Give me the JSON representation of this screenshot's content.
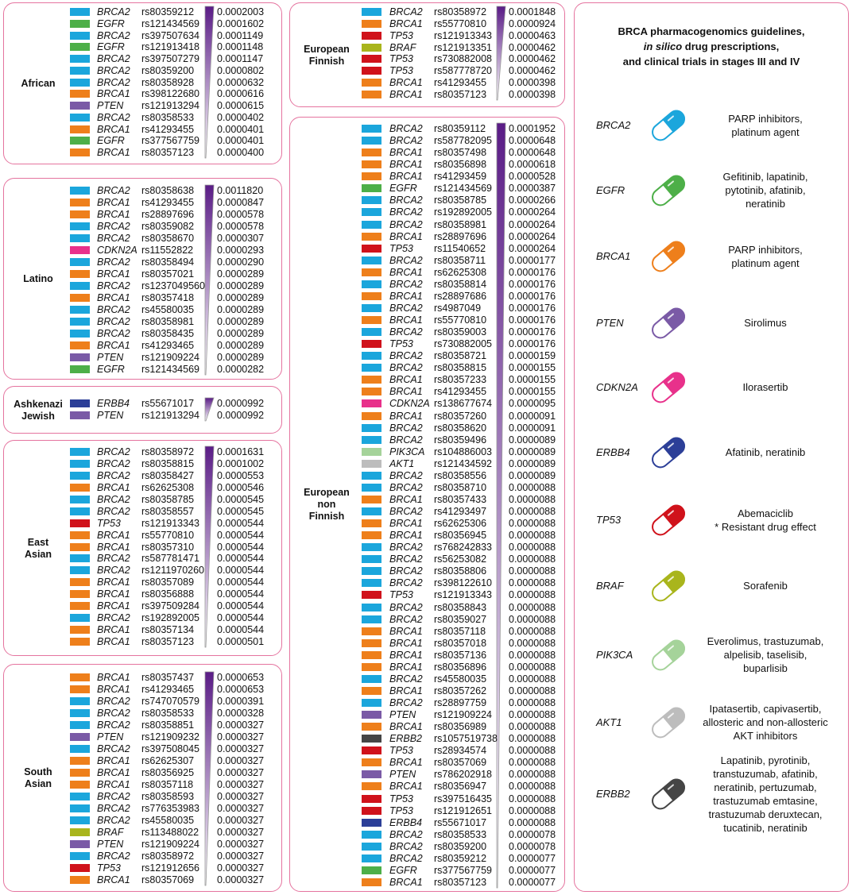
{
  "gene_colors": {
    "BRCA2": "#1ba6dc",
    "BRCA1": "#ee7f1b",
    "EGFR": "#4daf48",
    "PTEN": "#7a5aa6",
    "TP53": "#d0121b",
    "CDKN2A": "#e8318b",
    "ERBB4": "#2c3f98",
    "BRAF": "#a9b51c",
    "PIK3CA": "#a5d39a",
    "AKT1": "#bdbdbd",
    "ERBB2": "#454545"
  },
  "panels": [
    {
      "name": [
        "African"
      ],
      "rows": [
        [
          "BRCA2",
          "rs80359212",
          "0.0002003"
        ],
        [
          "EGFR",
          "rs121434569",
          "0.0001602"
        ],
        [
          "BRCA2",
          "rs397507634",
          "0.0001149"
        ],
        [
          "EGFR",
          "rs121913418",
          "0.0001148"
        ],
        [
          "BRCA2",
          "rs397507279",
          "0.0001147"
        ],
        [
          "BRCA2",
          "rs80359200",
          "0.0000802"
        ],
        [
          "BRCA2",
          "rs80358928",
          "0.0000632"
        ],
        [
          "BRCA1",
          "rs398122680",
          "0.0000616"
        ],
        [
          "PTEN",
          "rs121913294",
          "0.0000615"
        ],
        [
          "BRCA2",
          "rs80358533",
          "0.0000402"
        ],
        [
          "BRCA1",
          "rs41293455",
          "0.0000401"
        ],
        [
          "EGFR",
          "rs377567759",
          "0.0000401"
        ],
        [
          "BRCA1",
          "rs80357123",
          "0.0000400"
        ]
      ]
    },
    {
      "name": [
        "Latino"
      ],
      "rows": [
        [
          "BRCA2",
          "rs80358638",
          "0.0011820"
        ],
        [
          "BRCA1",
          "rs41293455",
          "0.0000847"
        ],
        [
          "BRCA1",
          "rs28897696",
          "0.0000578"
        ],
        [
          "BRCA2",
          "rs80359082",
          "0.0000578"
        ],
        [
          "BRCA2",
          "rs80358670",
          "0.0000307"
        ],
        [
          "CDKN2A",
          "rs11552822",
          "0.0000293"
        ],
        [
          "BRCA2",
          "rs80358494",
          "0.0000290"
        ],
        [
          "BRCA1",
          "rs80357021",
          "0.0000289"
        ],
        [
          "BRCA2",
          "rs1237049560",
          "0.0000289"
        ],
        [
          "BRCA1",
          "rs80357418",
          "0.0000289"
        ],
        [
          "BRCA2",
          "rs45580035",
          "0.0000289"
        ],
        [
          "BRCA2",
          "rs80358981",
          "0.0000289"
        ],
        [
          "BRCA2",
          "rs80358435",
          "0.0000289"
        ],
        [
          "BRCA1",
          "rs41293465",
          "0.0000289"
        ],
        [
          "PTEN",
          "rs121909224",
          "0.0000289"
        ],
        [
          "EGFR",
          "rs121434569",
          "0.0000282"
        ]
      ]
    },
    {
      "name": [
        "Ashkenazi",
        "Jewish"
      ],
      "rows": [
        [
          "ERBB4",
          "rs55671017",
          "0.0000992"
        ],
        [
          "PTEN",
          "rs121913294",
          "0.0000992"
        ]
      ]
    },
    {
      "name": [
        "East",
        "Asian"
      ],
      "rows": [
        [
          "BRCA2",
          "rs80358972",
          "0.0001631"
        ],
        [
          "BRCA2",
          "rs80358815",
          "0.0001002"
        ],
        [
          "BRCA2",
          "rs80358427",
          "0.0000553"
        ],
        [
          "BRCA1",
          "rs62625308",
          "0.0000546"
        ],
        [
          "BRCA2",
          "rs80358785",
          "0.0000545"
        ],
        [
          "BRCA2",
          "rs80358557",
          "0.0000545"
        ],
        [
          "TP53",
          "rs121913343",
          "0.0000544"
        ],
        [
          "BRCA1",
          "rs55770810",
          "0.0000544"
        ],
        [
          "BRCA1",
          "rs80357310",
          "0.0000544"
        ],
        [
          "BRCA2",
          "rs587781471",
          "0.0000544"
        ],
        [
          "BRCA2",
          "rs1211970260",
          "0.0000544"
        ],
        [
          "BRCA1",
          "rs80357089",
          "0.0000544"
        ],
        [
          "BRCA1",
          "rs80356888",
          "0.0000544"
        ],
        [
          "BRCA1",
          "rs397509284",
          "0.0000544"
        ],
        [
          "BRCA2",
          "rs192892005",
          "0.0000544"
        ],
        [
          "BRCA1",
          "rs80357134",
          "0.0000544"
        ],
        [
          "BRCA1",
          "rs80357123",
          "0.0000501"
        ]
      ]
    },
    {
      "name": [
        "South",
        "Asian"
      ],
      "rows": [
        [
          "BRCA1",
          "rs80357437",
          "0.0000653"
        ],
        [
          "BRCA1",
          "rs41293465",
          "0.0000653"
        ],
        [
          "BRCA2",
          "rs747070579",
          "0.0000391"
        ],
        [
          "BRCA2",
          "rs80358533",
          "0.0000328"
        ],
        [
          "BRCA2",
          "rs80358851",
          "0.0000327"
        ],
        [
          "PTEN",
          "rs121909232",
          "0.0000327"
        ],
        [
          "BRCA2",
          "rs397508045",
          "0.0000327"
        ],
        [
          "BRCA1",
          "rs62625307",
          "0.0000327"
        ],
        [
          "BRCA1",
          "rs80356925",
          "0.0000327"
        ],
        [
          "BRCA1",
          "rs80357118",
          "0.0000327"
        ],
        [
          "BRCA2",
          "rs80358593",
          "0.0000327"
        ],
        [
          "BRCA2",
          "rs776353983",
          "0.0000327"
        ],
        [
          "BRCA2",
          "rs45580035",
          "0.0000327"
        ],
        [
          "BRAF",
          "rs113488022",
          "0.0000327"
        ],
        [
          "PTEN",
          "rs121909224",
          "0.0000327"
        ],
        [
          "BRCA2",
          "rs80358972",
          "0.0000327"
        ],
        [
          "TP53",
          "rs121912656",
          "0.0000327"
        ],
        [
          "BRCA1",
          "rs80357069",
          "0.0000327"
        ]
      ]
    },
    {
      "name": [
        "European",
        "Finnish"
      ],
      "rows": [
        [
          "BRCA2",
          "rs80358972",
          "0.0001848"
        ],
        [
          "BRCA1",
          "rs55770810",
          "0.0000924"
        ],
        [
          "TP53",
          "rs121913343",
          "0.0000463"
        ],
        [
          "BRAF",
          "rs121913351",
          "0.0000462"
        ],
        [
          "TP53",
          "rs730882008",
          "0.0000462"
        ],
        [
          "TP53",
          "rs587778720",
          "0.0000462"
        ],
        [
          "BRCA1",
          "rs41293455",
          "0.0000398"
        ],
        [
          "BRCA1",
          "rs80357123",
          "0.0000398"
        ]
      ]
    },
    {
      "name": [
        "European",
        "non",
        "Finnish"
      ],
      "rows": [
        [
          "BRCA2",
          "rs80359112",
          "0.0001952"
        ],
        [
          "BRCA2",
          "rs587782095",
          "0.0000648"
        ],
        [
          "BRCA1",
          "rs80357498",
          "0.0000648"
        ],
        [
          "BRCA1",
          "rs80356898",
          "0.0000618"
        ],
        [
          "BRCA1",
          "rs41293459",
          "0.0000528"
        ],
        [
          "EGFR",
          "rs121434569",
          "0.0000387"
        ],
        [
          "BRCA2",
          "rs80358785",
          "0.0000266"
        ],
        [
          "BRCA2",
          "rs192892005",
          "0.0000264"
        ],
        [
          "BRCA2",
          "rs80358981",
          "0.0000264"
        ],
        [
          "BRCA1",
          "rs28897696",
          "0.0000264"
        ],
        [
          "TP53",
          "rs11540652",
          "0.0000264"
        ],
        [
          "BRCA2",
          "rs80358711",
          "0.0000177"
        ],
        [
          "BRCA1",
          "rs62625308",
          "0.0000176"
        ],
        [
          "BRCA2",
          "rs80358814",
          "0.0000176"
        ],
        [
          "BRCA1",
          "rs28897686",
          "0.0000176"
        ],
        [
          "BRCA2",
          "rs4987049",
          "0.0000176"
        ],
        [
          "BRCA1",
          "rs55770810",
          "0.0000176"
        ],
        [
          "BRCA2",
          "rs80359003",
          "0.0000176"
        ],
        [
          "TP53",
          "rs730882005",
          "0.0000176"
        ],
        [
          "BRCA2",
          "rs80358721",
          "0.0000159"
        ],
        [
          "BRCA2",
          "rs80358815",
          "0.0000155"
        ],
        [
          "BRCA1",
          "rs80357233",
          "0.0000155"
        ],
        [
          "BRCA1",
          "rs41293455",
          "0.0000155"
        ],
        [
          "CDKN2A",
          "rs138677674",
          "0.0000095"
        ],
        [
          "BRCA1",
          "rs80357260",
          "0.0000091"
        ],
        [
          "BRCA2",
          "rs80358620",
          "0.0000091"
        ],
        [
          "BRCA2",
          "rs80359496",
          "0.0000089"
        ],
        [
          "PIK3CA",
          "rs104886003",
          "0.0000089"
        ],
        [
          "AKT1",
          "rs121434592",
          "0.0000089"
        ],
        [
          "BRCA2",
          "rs80358556",
          "0.0000089"
        ],
        [
          "BRCA2",
          "rs80358710",
          "0.0000088"
        ],
        [
          "BRCA1",
          "rs80357433",
          "0.0000088"
        ],
        [
          "BRCA2",
          "rs41293497",
          "0.0000088"
        ],
        [
          "BRCA1",
          "rs62625306",
          "0.0000088"
        ],
        [
          "BRCA1",
          "rs80356945",
          "0.0000088"
        ],
        [
          "BRCA2",
          "rs768242833",
          "0.0000088"
        ],
        [
          "BRCA2",
          "rs56253082",
          "0.0000088"
        ],
        [
          "BRCA2",
          "rs80358806",
          "0.0000088"
        ],
        [
          "BRCA2",
          "rs398122610",
          "0.0000088"
        ],
        [
          "TP53",
          "rs121913343",
          "0.0000088"
        ],
        [
          "BRCA2",
          "rs80358843",
          "0.0000088"
        ],
        [
          "BRCA2",
          "rs80359027",
          "0.0000088"
        ],
        [
          "BRCA1",
          "rs80357118",
          "0.0000088"
        ],
        [
          "BRCA1",
          "rs80357018",
          "0.0000088"
        ],
        [
          "BRCA1",
          "rs80357136",
          "0.0000088"
        ],
        [
          "BRCA1",
          "rs80356896",
          "0.0000088"
        ],
        [
          "BRCA2",
          "rs45580035",
          "0.0000088"
        ],
        [
          "BRCA1",
          "rs80357262",
          "0.0000088"
        ],
        [
          "BRCA2",
          "rs28897759",
          "0.0000088"
        ],
        [
          "PTEN",
          "rs121909224",
          "0.0000088"
        ],
        [
          "BRCA1",
          "rs80356989",
          "0.0000088"
        ],
        [
          "ERBB2",
          "rs1057519738",
          "0.0000088"
        ],
        [
          "TP53",
          "rs28934574",
          "0.0000088"
        ],
        [
          "BRCA1",
          "rs80357069",
          "0.0000088"
        ],
        [
          "PTEN",
          "rs786202918",
          "0.0000088"
        ],
        [
          "BRCA1",
          "rs80356947",
          "0.0000088"
        ],
        [
          "TP53",
          "rs397516435",
          "0.0000088"
        ],
        [
          "TP53",
          "rs121912651",
          "0.0000088"
        ],
        [
          "ERBB4",
          "rs55671017",
          "0.0000088"
        ],
        [
          "BRCA2",
          "rs80358533",
          "0.0000078"
        ],
        [
          "BRCA2",
          "rs80359200",
          "0.0000078"
        ],
        [
          "BRCA2",
          "rs80359212",
          "0.0000077"
        ],
        [
          "EGFR",
          "rs377567759",
          "0.0000077"
        ],
        [
          "BRCA1",
          "rs80357123",
          "0.0000077"
        ]
      ]
    }
  ],
  "guidelines": {
    "title": [
      [
        "BRCA pharmacogenomics guidelines,"
      ],
      [
        "in silico",
        "drug prescriptions,"
      ],
      [
        "and clinical trials in stages III and IV"
      ]
    ],
    "items": [
      {
        "gene": "BRCA2",
        "drugs": [
          "PARP inhibitors,",
          "platinum agent"
        ]
      },
      {
        "gene": "EGFR",
        "drugs": [
          "Gefitinib, lapatinib,",
          "pytotinib, afatinib,",
          "neratinib"
        ]
      },
      {
        "gene": "BRCA1",
        "drugs": [
          "PARP inhibitors,",
          "platinum agent"
        ]
      },
      {
        "gene": "PTEN",
        "drugs": [
          "Sirolimus"
        ]
      },
      {
        "gene": "CDKN2A",
        "drugs": [
          "Ilorasertib"
        ]
      },
      {
        "gene": "ERBB4",
        "drugs": [
          "Afatinib, neratinib"
        ]
      },
      {
        "gene": "TP53",
        "drugs": [
          "Abemaciclib",
          "* Resistant drug effect"
        ]
      },
      {
        "gene": "BRAF",
        "drugs": [
          "Sorafenib"
        ]
      },
      {
        "gene": "PIK3CA",
        "drugs": [
          "Everolimus, trastuzumab,",
          "alpelisib, taselisib,",
          "buparlisib"
        ]
      },
      {
        "gene": "AKT1",
        "drugs": [
          "Ipatasertib, capivasertib,",
          "allosteric and non-allosteric",
          "AKT inhibitors"
        ]
      },
      {
        "gene": "ERBB2",
        "drugs": [
          "Lapatinib, pyrotinib,",
          "transtuzumab, afatinib,",
          "neratinib, pertuzumab,",
          "trastuzumab emtasine,",
          "trastuzumab deruxtecan,",
          "tucatinib, neratinib"
        ]
      }
    ]
  }
}
